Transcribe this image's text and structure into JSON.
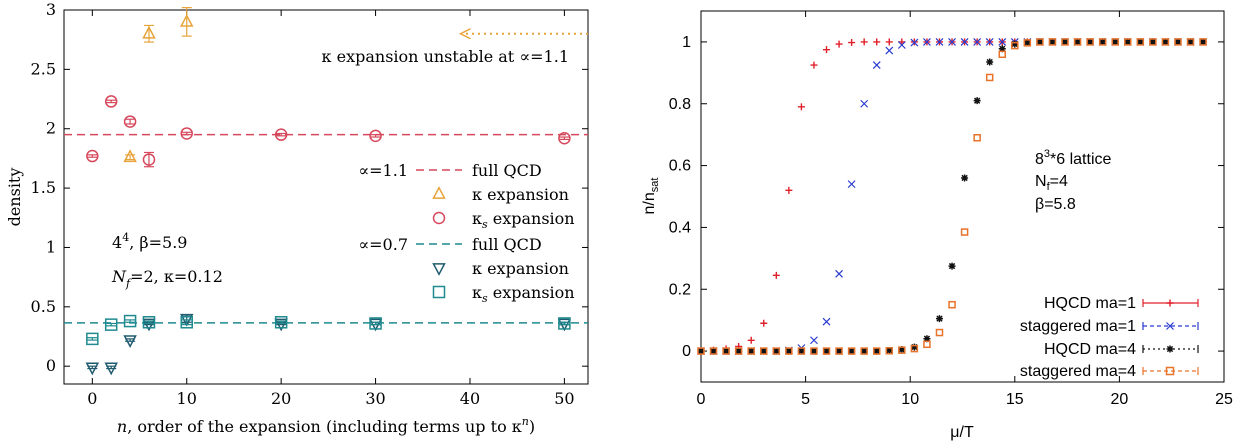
{
  "chart_data": [
    {
      "type": "scatter",
      "xlabel": "n, order of the expansion (including terms up to κ^n)",
      "xlabel_parts": [
        "n",
        ", order of the expansion (including terms up to κ",
        "n",
        ")"
      ],
      "ylabel": "density",
      "xlim": [
        -3,
        52.5
      ],
      "ylim": [
        -0.15,
        3.0
      ],
      "xticks": [
        0,
        10,
        20,
        30,
        40,
        50
      ],
      "yticks": [
        0,
        0.5,
        1,
        1.5,
        2,
        2.5,
        3
      ],
      "grid": false,
      "colors": {
        "red": "#d6485c",
        "orange": "#e8a33a",
        "teal": "#1f8a8f",
        "navy": "#1f5b6e"
      },
      "annotation": {
        "text": "κ expansion unstable at ∝=1.1",
        "arrow_from": [
          52.5,
          2.8
        ],
        "arrow_to": [
          39,
          2.8
        ]
      },
      "info_text": {
        "lattice_prefix": "4",
        "lattice_exp": "4",
        "lattice_suffix": ", β=5.9",
        "nf_prefix": "N",
        "nf_sub": "f",
        "nf_suffix": "=2, κ=0.12"
      },
      "legend_groups": [
        {
          "group_label": "∝=1.1",
          "entries": [
            "full QCD",
            "κ expansion",
            "κ_s expansion"
          ]
        },
        {
          "group_label": "∝=0.7",
          "entries": [
            "full QCD",
            "κ expansion",
            "κ_s expansion"
          ]
        }
      ],
      "legend_text": {
        "kappa": "κ",
        "s": "s",
        "expansion": " expansion"
      },
      "series": [
        {
          "name": "full QCD (∝=1.1)",
          "kind": "hline",
          "y": 1.95,
          "color": "#d6485c"
        },
        {
          "name": "κ expansion (∝=1.1)",
          "kind": "triangle-up",
          "color": "#e8a33a",
          "x": [
            4,
            6,
            10
          ],
          "y": [
            1.76,
            2.8,
            2.9
          ],
          "err": [
            0.02,
            0.07,
            0.12
          ]
        },
        {
          "name": "κ_s expansion (∝=1.1)",
          "kind": "circle",
          "color": "#d6485c",
          "x": [
            0,
            2,
            4,
            6,
            10,
            20,
            30,
            50
          ],
          "y": [
            1.77,
            2.23,
            2.06,
            1.74,
            1.96,
            1.95,
            1.94,
            1.92
          ],
          "err": [
            0.01,
            0.01,
            0.02,
            0.06,
            0.01,
            0.01,
            0.01,
            0.01
          ]
        },
        {
          "name": "full QCD (∝=0.7)",
          "kind": "hline",
          "y": 0.365,
          "color": "#1f8a8f"
        },
        {
          "name": "κ expansion (∝=0.7)",
          "kind": "triangle-down",
          "color": "#1f5b6e",
          "x": [
            0,
            2,
            4,
            6,
            10,
            20,
            30,
            50
          ],
          "y": [
            -0.01,
            -0.01,
            0.22,
            0.36,
            0.4,
            0.36,
            0.36,
            0.36
          ],
          "err": [
            0.01,
            0.01,
            0.01,
            0.01,
            0.03,
            0.01,
            0.01,
            0.01
          ]
        },
        {
          "name": "κ_s expansion (∝=0.7)",
          "kind": "square",
          "color": "#1f8a8f",
          "x": [
            0,
            2,
            4,
            6,
            10,
            20,
            30,
            50
          ],
          "y": [
            0.23,
            0.35,
            0.38,
            0.37,
            0.37,
            0.37,
            0.36,
            0.36
          ],
          "err": [
            0.01,
            0.01,
            0.01,
            0.01,
            0.02,
            0.01,
            0.01,
            0.01
          ]
        }
      ]
    },
    {
      "type": "scatter",
      "xlabel": "μ/T",
      "ylabel": "n/n_sat",
      "ylabel_parts": [
        "n/n",
        "sat"
      ],
      "xlim": [
        0,
        25
      ],
      "ylim": [
        -0.1,
        1.1
      ],
      "xticks": [
        0,
        5,
        10,
        15,
        20,
        25
      ],
      "yticks": [
        0,
        0.2,
        0.4,
        0.6,
        0.8,
        1
      ],
      "grid": false,
      "legend_placement": "bottom-right",
      "info_text": {
        "line1_base": "8",
        "line1_sup": "3",
        "line1_rest": "*6 lattice",
        "line2_base": "N",
        "line2_sub": "f",
        "line2_rest": "=4",
        "line3": "β=5.8"
      },
      "series": [
        {
          "name": "HQCD ma=1",
          "marker": "plus",
          "color": "#e0202a",
          "x": [
            0,
            0.6,
            1.2,
            1.8,
            2.4,
            3.0,
            3.6,
            4.2,
            4.8,
            5.4,
            6.0,
            6.6,
            7.2,
            7.8,
            8.4,
            9.0,
            9.6,
            10.2,
            10.8,
            11.4,
            12.0,
            12.6,
            13.2,
            13.8,
            14.4,
            15.0,
            15.6,
            16.2,
            16.8,
            17.4,
            18.0,
            18.6,
            19.2,
            19.8,
            20.4,
            21.0,
            21.6,
            22.2,
            22.8,
            23.4,
            24.0
          ],
          "y": [
            0,
            0.003,
            0.007,
            0.015,
            0.035,
            0.09,
            0.245,
            0.52,
            0.79,
            0.925,
            0.975,
            0.993,
            0.998,
            1,
            1,
            1,
            1,
            1,
            1,
            1,
            1,
            1,
            1,
            1,
            1,
            1,
            1,
            1,
            1,
            1,
            1,
            1,
            1,
            1,
            1,
            1,
            1,
            1,
            1,
            1,
            1
          ]
        },
        {
          "name": "staggered ma=1",
          "marker": "cross",
          "color": "#2a3bd0",
          "x": [
            0,
            0.6,
            1.2,
            1.8,
            2.4,
            3.0,
            3.6,
            4.2,
            4.8,
            5.4,
            6.0,
            6.6,
            7.2,
            7.8,
            8.4,
            9.0,
            9.6,
            10.2,
            10.8,
            11.4,
            12.0,
            12.6,
            13.2,
            13.8,
            14.4,
            15.0,
            15.6,
            16.2,
            16.8,
            17.4,
            18.0,
            18.6,
            19.2,
            19.8,
            20.4,
            21.0,
            21.6,
            22.2,
            22.8,
            23.4,
            24.0
          ],
          "y": [
            0,
            0,
            0,
            0,
            0,
            0,
            0,
            0.002,
            0.01,
            0.035,
            0.095,
            0.25,
            0.54,
            0.8,
            0.925,
            0.972,
            0.99,
            0.998,
            1,
            1,
            1,
            1,
            1,
            1,
            1,
            1,
            1,
            1,
            1,
            1,
            1,
            1,
            1,
            1,
            1,
            1,
            1,
            1,
            1,
            1,
            1
          ]
        },
        {
          "name": "HQCD ma=4",
          "marker": "star",
          "color": "#111111",
          "x": [
            0,
            0.6,
            1.2,
            1.8,
            2.4,
            3.0,
            3.6,
            4.2,
            4.8,
            5.4,
            6.0,
            6.6,
            7.2,
            7.8,
            8.4,
            9.0,
            9.6,
            10.2,
            10.8,
            11.4,
            12.0,
            12.6,
            13.2,
            13.8,
            14.4,
            15.0,
            15.6,
            16.2,
            16.8,
            17.4,
            18.0,
            18.6,
            19.2,
            19.8,
            20.4,
            21.0,
            21.6,
            22.2,
            22.8,
            23.4,
            24.0
          ],
          "y": [
            0,
            0,
            0,
            0,
            0,
            0,
            0,
            0,
            0,
            0,
            0,
            0,
            0,
            0,
            0,
            0.002,
            0.005,
            0.013,
            0.04,
            0.105,
            0.275,
            0.56,
            0.81,
            0.935,
            0.978,
            0.993,
            0.998,
            1,
            1,
            1,
            1,
            1,
            1,
            1,
            1,
            1,
            1,
            1,
            1,
            1,
            1
          ]
        },
        {
          "name": "staggered ma=4",
          "marker": "square",
          "color": "#e8732a",
          "x": [
            0,
            0.6,
            1.2,
            1.8,
            2.4,
            3.0,
            3.6,
            4.2,
            4.8,
            5.4,
            6.0,
            6.6,
            7.2,
            7.8,
            8.4,
            9.0,
            9.6,
            10.2,
            10.8,
            11.4,
            12.0,
            12.6,
            13.2,
            13.8,
            14.4,
            15.0,
            15.6,
            16.2,
            16.8,
            17.4,
            18.0,
            18.6,
            19.2,
            19.8,
            20.4,
            21.0,
            21.6,
            22.2,
            22.8,
            23.4,
            24.0
          ],
          "y": [
            0,
            0,
            0,
            0,
            0,
            0,
            0,
            0,
            0,
            0,
            0,
            0,
            0,
            0,
            0,
            0.001,
            0.003,
            0.008,
            0.022,
            0.06,
            0.15,
            0.385,
            0.69,
            0.885,
            0.96,
            0.988,
            0.997,
            1,
            1,
            1,
            1,
            1,
            1,
            1,
            1,
            1,
            1,
            1,
            1,
            1,
            1
          ]
        }
      ]
    }
  ]
}
